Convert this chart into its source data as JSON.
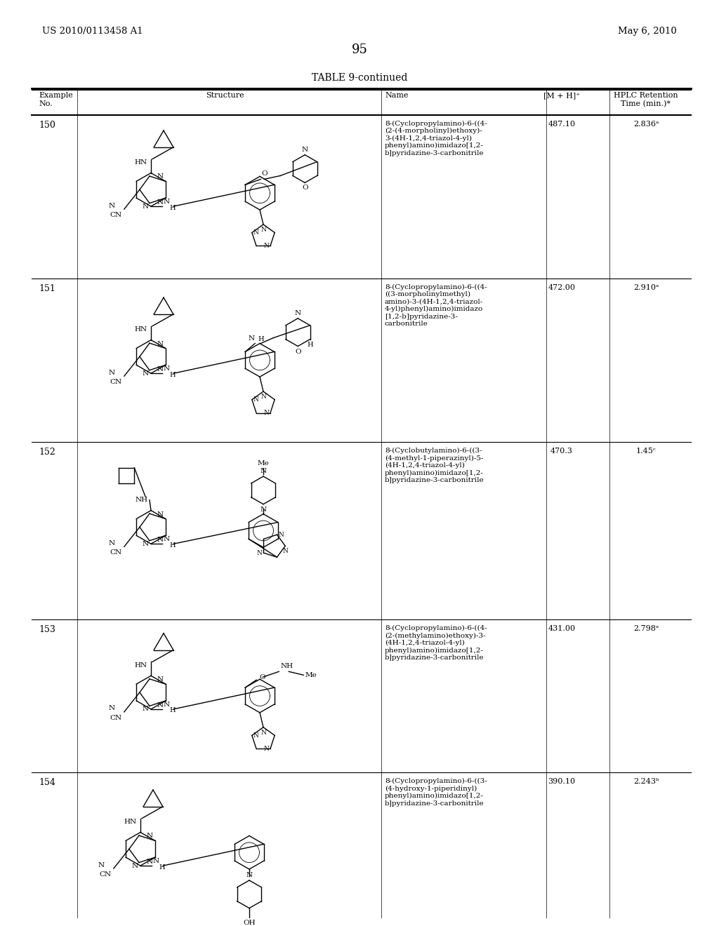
{
  "patent_number": "US 2010/0113458 A1",
  "date": "May 6, 2010",
  "page_number": "95",
  "table_title": "TABLE 9-continued",
  "rows": [
    {
      "example": "150",
      "name": "8-(Cyclopropylamino)-6-((4-\n(2-(4-morpholinyl)ethoxy)-\n3-(4H-1,2,4-triazol-4-yl)\nphenyl)amino)imidazo[1,2-\nb]pyridazine-3-carbonitrile",
      "mh": "487.10",
      "hplc": "2.836ᵃ"
    },
    {
      "example": "151",
      "name": "8-(Cyclopropylamino)-6-((4-\n((3-morpholinylmethyl)\namino)-3-(4H-1,2,4-triazol-\n4-yl)phenyl)amino)imidazo\n[1,2-b]pyridazine-3-\ncarbonitrile",
      "mh": "472.00",
      "hplc": "2.910ᵃ"
    },
    {
      "example": "152",
      "name": "8-(Cyclobutylamino)-6-((3-\n(4-methyl-1-piperazinyl)-5-\n(4H-1,2,4-triazol-4-yl)\nphenyl)amino)imidazo[1,2-\nb]pyridazine-3-carbonitrile",
      "mh": "470.3",
      "hplc": "1.45ᶜ"
    },
    {
      "example": "153",
      "name": "8-(Cyclopropylamino)-6-((4-\n(2-(methylamino)ethoxy)-3-\n(4H-1,2,4-triazol-4-yl)\nphenyl)amino)imidazo[1,2-\nb]pyridazine-3-carbonitrile",
      "mh": "431.00",
      "hplc": "2.798ᵃ"
    },
    {
      "example": "154",
      "name": "8-(Cyclopropylamino)-6-((3-\n(4-hydroxy-1-piperidinyl)\nphenyl)amino)imidazo[1,2-\nb]pyridazine-3-carbonitrile",
      "mh": "390.10",
      "hplc": "2.243ᵇ"
    }
  ],
  "bg_color": "#ffffff",
  "text_color": "#000000"
}
